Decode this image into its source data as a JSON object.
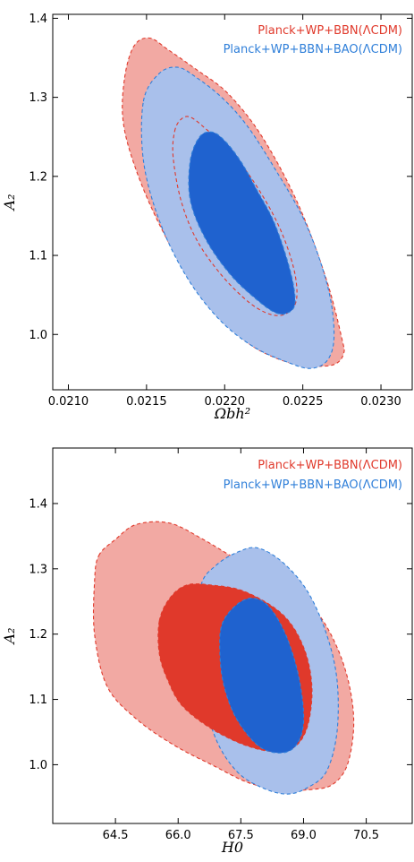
{
  "chart_data": [
    {
      "type": "contour",
      "xlabel": "Ωbh²",
      "ylabel": "A₂",
      "xlim": [
        0.0209,
        0.0232
      ],
      "ylim": [
        0.93,
        1.405
      ],
      "xticks": [
        0.021,
        0.0215,
        0.022,
        0.0225,
        0.023
      ],
      "xtick_labels": [
        "0.0210",
        "0.0215",
        "0.0220",
        "0.0225",
        "0.0230"
      ],
      "yticks": [
        1.0,
        1.1,
        1.2,
        1.3,
        1.4
      ],
      "ytick_labels": [
        "1.0",
        "1.1",
        "1.2",
        "1.3",
        "1.4"
      ],
      "legend_position": "top-right",
      "series": [
        {
          "name": "Planck+WP+BBN(ΛCDM)",
          "color": "#e0392b",
          "levels": [
            {
              "level": "95%",
              "fill": "#f2a9a3",
              "points": [
                [
                  0.02136,
                  1.325
                ],
                [
                  0.02142,
                  1.365
                ],
                [
                  0.02152,
                  1.375
                ],
                [
                  0.02164,
                  1.36
                ],
                [
                  0.02182,
                  1.335
                ],
                [
                  0.02202,
                  1.305
                ],
                [
                  0.02224,
                  1.25
                ],
                [
                  0.02247,
                  1.165
                ],
                [
                  0.02265,
                  1.07
                ],
                [
                  0.02275,
                  0.995
                ],
                [
                  0.02276,
                  0.975
                ],
                [
                  0.0227,
                  0.962
                ],
                [
                  0.02256,
                  0.96
                ],
                [
                  0.0224,
                  0.965
                ],
                [
                  0.02218,
                  0.985
                ],
                [
                  0.02198,
                  1.02
                ],
                [
                  0.02178,
                  1.07
                ],
                [
                  0.02158,
                  1.14
                ],
                [
                  0.02143,
                  1.21
                ],
                [
                  0.02135,
                  1.27
                ]
              ]
            },
            {
              "level": "68%",
              "fill": "#ffffff",
              "points": [
                [
                  0.02168,
                  1.257
                ],
                [
                  0.02172,
                  1.272
                ],
                [
                  0.02178,
                  1.275
                ],
                [
                  0.02188,
                  1.26
                ],
                [
                  0.02202,
                  1.235
                ],
                [
                  0.02218,
                  1.195
                ],
                [
                  0.02234,
                  1.14
                ],
                [
                  0.02244,
                  1.085
                ],
                [
                  0.02246,
                  1.045
                ],
                [
                  0.0224,
                  1.027
                ],
                [
                  0.0223,
                  1.025
                ],
                [
                  0.02216,
                  1.04
                ],
                [
                  0.02198,
                  1.075
                ],
                [
                  0.02182,
                  1.12
                ],
                [
                  0.02172,
                  1.17
                ],
                [
                  0.02167,
                  1.225
                ]
              ]
            }
          ]
        },
        {
          "name": "Planck+WP+BBN+BAO(ΛCDM)",
          "color": "#2f7fd9",
          "levels": [
            {
              "level": "95%",
              "fill": "#a9c0eb",
              "points": [
                [
                  0.02148,
                  1.295
                ],
                [
                  0.02158,
                  1.33
                ],
                [
                  0.0217,
                  1.338
                ],
                [
                  0.02182,
                  1.325
                ],
                [
                  0.02198,
                  1.3
                ],
                [
                  0.02214,
                  1.265
                ],
                [
                  0.02232,
                  1.21
                ],
                [
                  0.02252,
                  1.14
                ],
                [
                  0.02266,
                  1.06
                ],
                [
                  0.0227,
                  1.0
                ],
                [
                  0.02266,
                  0.968
                ],
                [
                  0.02255,
                  0.957
                ],
                [
                  0.0224,
                  0.965
                ],
                [
                  0.02218,
                  0.985
                ],
                [
                  0.02196,
                  1.02
                ],
                [
                  0.02175,
                  1.075
                ],
                [
                  0.02158,
                  1.145
                ],
                [
                  0.02148,
                  1.22
                ]
              ]
            },
            {
              "level": "68%",
              "fill": "#1f62cf",
              "points": [
                [
                  0.02178,
                  1.22
                ],
                [
                  0.02184,
                  1.25
                ],
                [
                  0.02192,
                  1.256
                ],
                [
                  0.022,
                  1.245
                ],
                [
                  0.0221,
                  1.22
                ],
                [
                  0.0222,
                  1.185
                ],
                [
                  0.02232,
                  1.14
                ],
                [
                  0.02242,
                  1.08
                ],
                [
                  0.02245,
                  1.04
                ],
                [
                  0.0224,
                  1.027
                ],
                [
                  0.02232,
                  1.028
                ],
                [
                  0.0222,
                  1.045
                ],
                [
                  0.02204,
                  1.075
                ],
                [
                  0.02188,
                  1.12
                ],
                [
                  0.02178,
                  1.17
                ]
              ]
            }
          ]
        }
      ]
    },
    {
      "type": "contour",
      "xlabel": "H0",
      "ylabel": "A₂",
      "xlim": [
        63.0,
        71.6
      ],
      "ylim": [
        0.91,
        1.485
      ],
      "xticks": [
        64.5,
        66.0,
        67.5,
        69.0,
        70.5
      ],
      "xtick_labels": [
        "64.5",
        "66.0",
        "67.5",
        "69.0",
        "70.5"
      ],
      "yticks": [
        1.0,
        1.1,
        1.2,
        1.3,
        1.4
      ],
      "ytick_labels": [
        "1.0",
        "1.1",
        "1.2",
        "1.3",
        "1.4"
      ],
      "legend_position": "top-right",
      "series": [
        {
          "name": "Planck+WP+BBN(ΛCDM)",
          "color": "#e0392b",
          "levels": [
            {
              "level": "95%",
              "fill": "#f2a9a3",
              "points": [
                [
                  64.1,
                  1.32
                ],
                [
                  64.5,
                  1.345
                ],
                [
                  65.0,
                  1.368
                ],
                [
                  65.8,
                  1.37
                ],
                [
                  66.6,
                  1.345
                ],
                [
                  67.4,
                  1.315
                ],
                [
                  68.5,
                  1.28
                ],
                [
                  69.3,
                  1.235
                ],
                [
                  69.8,
                  1.18
                ],
                [
                  70.1,
                  1.12
                ],
                [
                  70.2,
                  1.06
                ],
                [
                  70.05,
                  1.0
                ],
                [
                  69.7,
                  0.97
                ],
                [
                  69.2,
                  0.962
                ],
                [
                  68.5,
                  0.962
                ],
                [
                  67.7,
                  0.972
                ],
                [
                  66.8,
                  1.0
                ],
                [
                  65.9,
                  1.03
                ],
                [
                  65.0,
                  1.07
                ],
                [
                  64.3,
                  1.12
                ],
                [
                  64.0,
                  1.2
                ],
                [
                  64.0,
                  1.28
                ]
              ]
            },
            {
              "level": "68%",
              "fill": "#e0392b",
              "points": [
                [
                  65.55,
                  1.22
                ],
                [
                  65.8,
                  1.255
                ],
                [
                  66.2,
                  1.275
                ],
                [
                  66.8,
                  1.275
                ],
                [
                  67.6,
                  1.265
                ],
                [
                  68.5,
                  1.23
                ],
                [
                  69.0,
                  1.18
                ],
                [
                  69.2,
                  1.12
                ],
                [
                  69.1,
                  1.06
                ],
                [
                  68.8,
                  1.028
                ],
                [
                  68.3,
                  1.02
                ],
                [
                  67.6,
                  1.03
                ],
                [
                  66.8,
                  1.055
                ],
                [
                  66.1,
                  1.09
                ],
                [
                  65.75,
                  1.13
                ],
                [
                  65.55,
                  1.17
                ]
              ]
            }
          ]
        },
        {
          "name": "Planck+WP+BBN+BAO(ΛCDM)",
          "color": "#2f7fd9",
          "levels": [
            {
              "level": "95%",
              "fill": "#a9c0eb",
              "points": [
                [
                  66.55,
                  1.275
                ],
                [
                  66.9,
                  1.305
                ],
                [
                  67.4,
                  1.325
                ],
                [
                  67.9,
                  1.332
                ],
                [
                  68.5,
                  1.31
                ],
                [
                  69.1,
                  1.265
                ],
                [
                  69.55,
                  1.2
                ],
                [
                  69.8,
                  1.13
                ],
                [
                  69.8,
                  1.05
                ],
                [
                  69.55,
                  0.99
                ],
                [
                  69.1,
                  0.965
                ],
                [
                  68.6,
                  0.955
                ],
                [
                  68.0,
                  0.965
                ],
                [
                  67.4,
                  0.99
                ],
                [
                  66.9,
                  1.04
                ],
                [
                  66.55,
                  1.12
                ],
                [
                  66.45,
                  1.2
                ]
              ]
            },
            {
              "level": "68%",
              "fill": "#1f62cf",
              "points": [
                [
                  67.05,
                  1.215
                ],
                [
                  67.4,
                  1.245
                ],
                [
                  67.8,
                  1.255
                ],
                [
                  68.2,
                  1.24
                ],
                [
                  68.6,
                  1.195
                ],
                [
                  68.9,
                  1.13
                ],
                [
                  69.0,
                  1.065
                ],
                [
                  68.8,
                  1.028
                ],
                [
                  68.4,
                  1.018
                ],
                [
                  67.9,
                  1.03
                ],
                [
                  67.4,
                  1.07
                ],
                [
                  67.1,
                  1.12
                ],
                [
                  67.0,
                  1.17
                ]
              ]
            }
          ]
        }
      ]
    }
  ]
}
